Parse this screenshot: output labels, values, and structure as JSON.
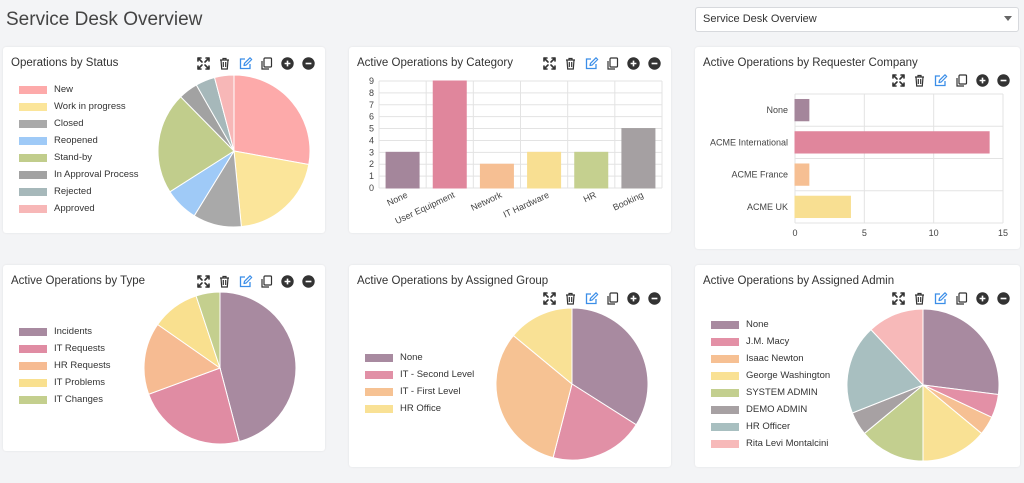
{
  "page": {
    "title": "Service Desk Overview"
  },
  "dashboard_select": {
    "value": "Service Desk Overview"
  },
  "toolbar_icons": [
    "expand-icon",
    "trash-icon",
    "edit-icon",
    "copy-icon",
    "add-circle-icon",
    "remove-circle-icon"
  ],
  "colors": {
    "accent_blue": "#3b8ee8",
    "icon_dark": "#333333"
  },
  "panels": {
    "status": {
      "title": "Operations by Status",
      "chart_data": {
        "type": "pie",
        "labels": [
          "New",
          "Work in progress",
          "Closed",
          "Reopened",
          "Stand-by",
          "In Approval Process",
          "Rejected",
          "Approved"
        ],
        "values": [
          27,
          20,
          10,
          7,
          21,
          4,
          4,
          4
        ],
        "colors": [
          "#fdaaaa",
          "#fbe59a",
          "#a9a9a9",
          "#9fcaf7",
          "#c1cd8c",
          "#a2a2a2",
          "#a6b8ba",
          "#f7b7b7"
        ]
      }
    },
    "category": {
      "title": "Active Operations by Category",
      "chart_data": {
        "type": "bar",
        "categories": [
          "None",
          "User Equipment",
          "Network",
          "IT Hardware",
          "HR",
          "Booking"
        ],
        "values": [
          3,
          9,
          2,
          3,
          3,
          5
        ],
        "ylim": [
          0,
          9
        ],
        "yticks": [
          0,
          1,
          2,
          3,
          4,
          5,
          6,
          7,
          8,
          9
        ],
        "colors": [
          "#a4869b",
          "#e0869c",
          "#f6bf93",
          "#f8df92",
          "#c5d08f",
          "#a5a0a2"
        ],
        "grid": true
      }
    },
    "requester": {
      "title": "Active Operations by Requester Company",
      "chart_data": {
        "type": "bar",
        "orientation": "horizontal",
        "categories": [
          "None",
          "ACME International",
          "ACME France",
          "ACME UK"
        ],
        "values": [
          1,
          14,
          1,
          4
        ],
        "xlim": [
          0,
          15
        ],
        "xticks": [
          0,
          5,
          10,
          15
        ],
        "colors": [
          "#a4869b",
          "#e0869c",
          "#f6bf93",
          "#f8df92"
        ],
        "grid": true
      }
    },
    "type": {
      "title": "Active Operations by Type",
      "chart_data": {
        "type": "pie",
        "labels": [
          "Incidents",
          "IT Requests",
          "HR Requests",
          "IT Problems",
          "IT Changes"
        ],
        "values": [
          45,
          23,
          15,
          10,
          5
        ],
        "colors": [
          "#a88aa0",
          "#e08ca3",
          "#f6bb92",
          "#f9e08f",
          "#c4cf8e"
        ]
      }
    },
    "group": {
      "title": "Active Operations by Assigned Group",
      "chart_data": {
        "type": "pie",
        "labels": [
          "None",
          "IT - Second Level",
          "IT - First Level",
          "HR Office"
        ],
        "values": [
          34,
          20,
          32,
          14
        ],
        "colors": [
          "#a88aa0",
          "#e190a6",
          "#f6c293",
          "#f9e195"
        ]
      }
    },
    "admin": {
      "title": "Active Operations by Assigned Admin",
      "chart_data": {
        "type": "pie",
        "labels": [
          "None",
          "J.M. Macy",
          "Isaac Newton",
          "George Washington",
          "SYSTEM ADMIN",
          "DEMO ADMIN",
          "HR Officer",
          "Rita Levi Montalcini"
        ],
        "values": [
          27,
          5,
          4,
          14,
          14,
          5,
          19,
          12
        ],
        "colors": [
          "#a88aa0",
          "#e390a6",
          "#f6c093",
          "#f9e194",
          "#c3cf8f",
          "#a7a1a3",
          "#a8bfc0",
          "#f7b9b9"
        ]
      }
    }
  }
}
